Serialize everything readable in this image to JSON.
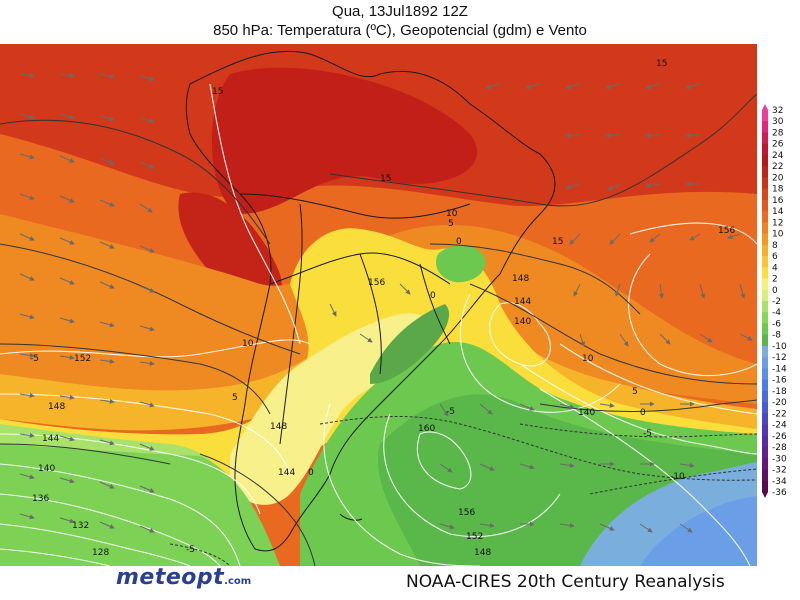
{
  "header": {
    "title_line1": "Qua, 13Jul1892 12Z",
    "title_line2": "850 hPa: Temperatura (ºC), Geopotencial (gdm) e Vento"
  },
  "footer": {
    "logo_text": "meteopt",
    "logo_suffix": ".com",
    "credit": "NOAA-CIRES 20th Century Reanalysis"
  },
  "colorbar": {
    "labels": [
      "32",
      "30",
      "28",
      "26",
      "24",
      "22",
      "20",
      "18",
      "16",
      "14",
      "12",
      "10",
      "8",
      "6",
      "4",
      "2",
      "0",
      "-2",
      "-4",
      "-6",
      "-8",
      "-10",
      "-12",
      "-14",
      "-16",
      "-18",
      "-20",
      "-22",
      "-24",
      "-26",
      "-28",
      "-30",
      "-32",
      "-34",
      "-36"
    ],
    "colors": [
      "#f23c9a",
      "#e6257a",
      "#d41a55",
      "#c0142f",
      "#b01a1a",
      "#bf2418",
      "#cc3216",
      "#d8461a",
      "#e2591c",
      "#e96d1d",
      "#ef8220",
      "#f39824",
      "#f6b02a",
      "#f8c832",
      "#f9df3c",
      "#f7f07a",
      "#d6f07a",
      "#a8e26a",
      "#86d65a",
      "#6cc84e",
      "#5ab84a",
      "#7aaedc",
      "#6a9ee6",
      "#5b8ee8",
      "#4c7ee6",
      "#4a6cdc",
      "#4a5ad2",
      "#4c48c4",
      "#5238b4",
      "#5a2aa2",
      "#60208e",
      "#641878",
      "#621062",
      "#5a0a4e"
    ]
  },
  "map": {
    "temperature_labels": [
      "15",
      "15",
      "15",
      "10",
      "10",
      "5",
      "5",
      "0",
      "0",
      "0",
      "-5",
      "-5",
      "-5",
      "-10",
      "10",
      "15",
      "5",
      "0",
      "-5"
    ],
    "geopotential_labels": [
      "152",
      "148",
      "144",
      "140",
      "136",
      "132",
      "128",
      "156",
      "148",
      "144",
      "140",
      "156",
      "160",
      "156",
      "152",
      "148",
      "148",
      "144",
      "140"
    ]
  }
}
